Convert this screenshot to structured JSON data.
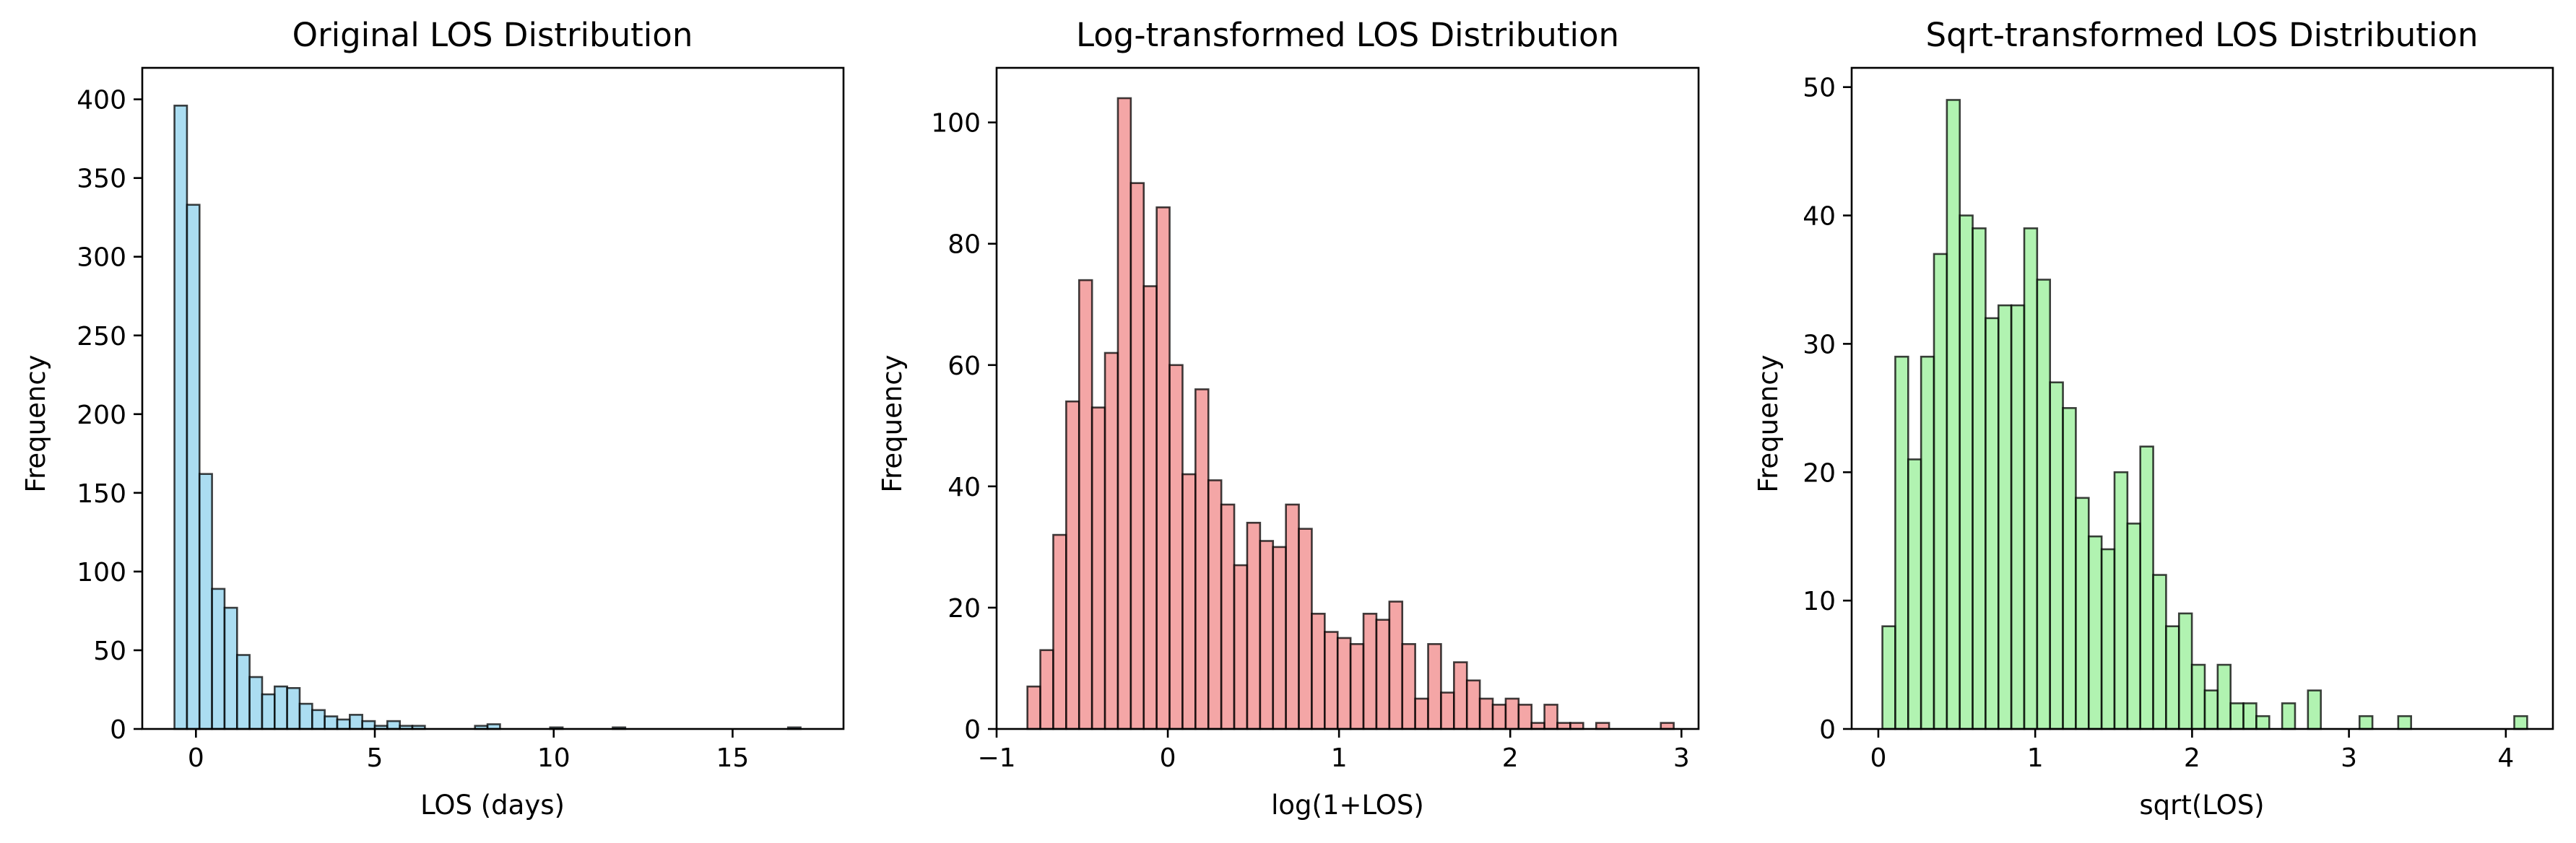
{
  "chart_data": [
    {
      "type": "bar",
      "title": "Original LOS Distribution",
      "xlabel": "LOS (days)",
      "ylabel": "Frequency",
      "xlim": [
        -1.5,
        18.1
      ],
      "ylim": [
        0,
        420
      ],
      "xticks": [
        0,
        5,
        10,
        15
      ],
      "yticks": [
        0,
        50,
        100,
        150,
        200,
        250,
        300,
        350,
        400
      ],
      "color": "#87CEEB",
      "bin_start": -0.6,
      "bin_width": 0.35,
      "values": [
        396,
        333,
        162,
        89,
        77,
        47,
        33,
        22,
        27,
        26,
        16,
        12,
        8,
        6,
        9,
        5,
        2,
        5,
        2,
        2,
        0,
        0,
        0,
        0,
        2,
        3,
        0,
        0,
        0,
        0,
        1,
        0,
        0,
        0,
        0,
        1,
        0,
        0,
        0,
        0,
        0,
        0,
        0,
        0,
        0,
        0,
        0,
        0,
        0,
        1
      ]
    },
    {
      "type": "bar",
      "title": "Log-transformed LOS Distribution",
      "xlabel": "log(1+LOS)",
      "ylabel": "Frequency",
      "xlim": [
        -1.0,
        3.1
      ],
      "ylim": [
        0,
        109
      ],
      "xticks": [
        -1,
        0,
        1,
        2,
        3
      ],
      "yticks": [
        0,
        20,
        40,
        60,
        80,
        100
      ],
      "color": "#F08080",
      "bin_start": -0.82,
      "bin_width": 0.0755,
      "values": [
        7,
        13,
        32,
        54,
        74,
        53,
        62,
        104,
        90,
        73,
        86,
        60,
        42,
        56,
        41,
        37,
        27,
        34,
        31,
        30,
        37,
        33,
        19,
        16,
        15,
        14,
        19,
        18,
        21,
        14,
        5,
        14,
        6,
        11,
        8,
        5,
        4,
        5,
        4,
        1,
        4,
        1,
        1,
        0,
        1,
        0,
        0,
        0,
        0,
        1
      ]
    },
    {
      "type": "bar",
      "title": "Sqrt-transformed LOS Distribution",
      "xlabel": "sqrt(LOS)",
      "ylabel": "Frequency",
      "xlim": [
        -0.17,
        4.3
      ],
      "ylim": [
        0,
        51.5
      ],
      "xticks": [
        0,
        1,
        2,
        3,
        4
      ],
      "yticks": [
        0,
        10,
        20,
        30,
        40,
        50
      ],
      "color": "#90EE90",
      "bin_start": 0.026,
      "bin_width": 0.0822,
      "values": [
        8,
        29,
        21,
        29,
        37,
        49,
        40,
        39,
        32,
        33,
        33,
        39,
        35,
        27,
        25,
        18,
        15,
        14,
        20,
        16,
        22,
        12,
        8,
        9,
        5,
        3,
        5,
        2,
        2,
        1,
        0,
        2,
        0,
        3,
        0,
        0,
        0,
        1,
        0,
        0,
        1,
        0,
        0,
        0,
        0,
        0,
        0,
        0,
        0,
        1
      ]
    }
  ]
}
